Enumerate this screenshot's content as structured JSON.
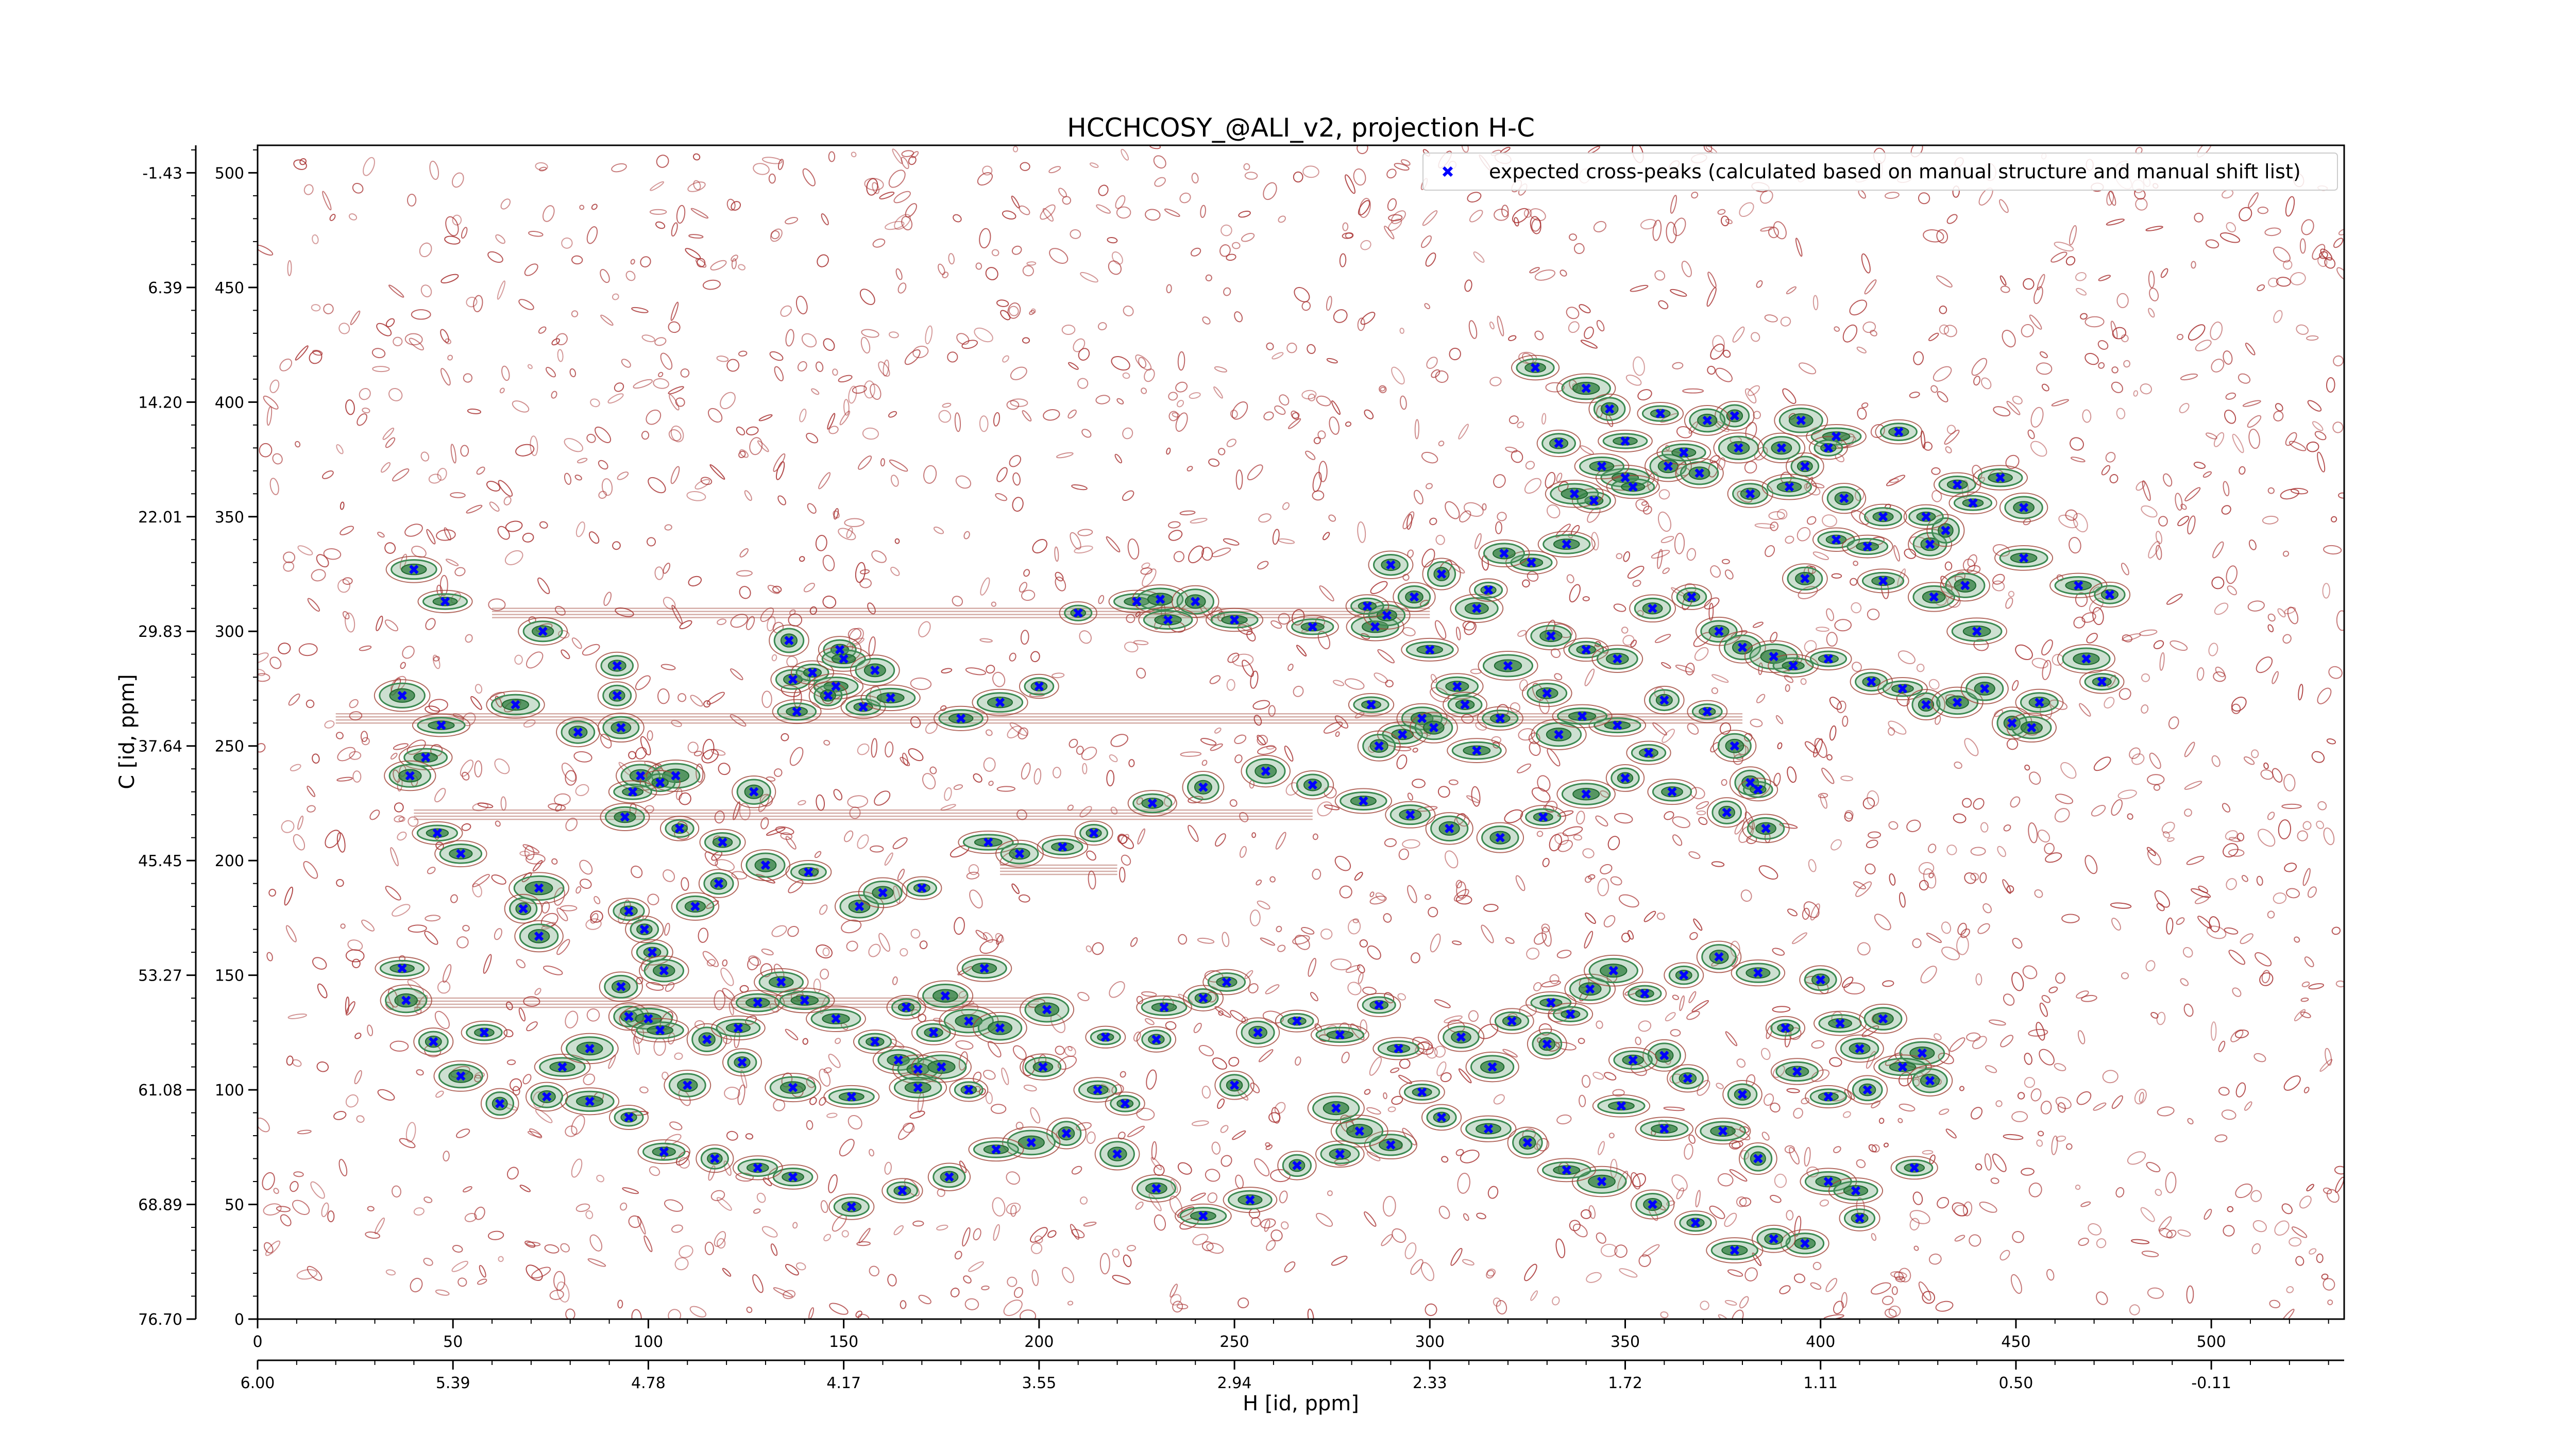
{
  "chart_data": {
    "type": "scatter",
    "title": "HCCHCOSY_@ALI_v2, projection H-C",
    "xlabel": "H [id, ppm]",
    "ylabel": "C [id, ppm]",
    "x_index_range": [
      0,
      534
    ],
    "y_index_range": [
      0,
      512
    ],
    "x_index_ticks": [
      "0",
      "50",
      "100",
      "150",
      "200",
      "250",
      "300",
      "350",
      "400",
      "450",
      "500"
    ],
    "x_ppm_ticks": [
      "6.00",
      "5.39",
      "4.78",
      "4.17",
      "3.55",
      "2.94",
      "2.33",
      "1.72",
      "1.11",
      "0.50",
      "-0.11"
    ],
    "y_index_ticks": [
      "0",
      "50",
      "100",
      "150",
      "200",
      "250",
      "300",
      "350",
      "400",
      "450",
      "500"
    ],
    "y_ppm_ticks": [
      "76.70",
      "68.89",
      "61.08",
      "53.27",
      "45.45",
      "37.64",
      "29.83",
      "22.01",
      "14.20",
      "6.39",
      "-1.43"
    ],
    "grid": false,
    "legend_position": "upper right",
    "series": [
      {
        "name": "expected cross-peaks (calculated based on manual structure and manual shift list)",
        "color": "#0000ff",
        "marker": "x",
        "points": [
          [
            40,
            327
          ],
          [
            48,
            313
          ],
          [
            37,
            272
          ],
          [
            47,
            259
          ],
          [
            66,
            268
          ],
          [
            73,
            300
          ],
          [
            82,
            256
          ],
          [
            92,
            285
          ],
          [
            92,
            272
          ],
          [
            93,
            258
          ],
          [
            98,
            237
          ],
          [
            107,
            237
          ],
          [
            103,
            234
          ],
          [
            96,
            230
          ],
          [
            94,
            219
          ],
          [
            108,
            214
          ],
          [
            119,
            208
          ],
          [
            127,
            230
          ],
          [
            136,
            296
          ],
          [
            137,
            279
          ],
          [
            142,
            282
          ],
          [
            149,
            292
          ],
          [
            150,
            288
          ],
          [
            148,
            276
          ],
          [
            158,
            283
          ],
          [
            146,
            272
          ],
          [
            138,
            265
          ],
          [
            155,
            267
          ],
          [
            162,
            271
          ],
          [
            180,
            262
          ],
          [
            190,
            269
          ],
          [
            200,
            276
          ],
          [
            210,
            308
          ],
          [
            225,
            313
          ],
          [
            231,
            314
          ],
          [
            240,
            313
          ],
          [
            233,
            305
          ],
          [
            250,
            305
          ],
          [
            270,
            302
          ],
          [
            286,
            302
          ],
          [
            289,
            307
          ],
          [
            296,
            315
          ],
          [
            312,
            310
          ],
          [
            315,
            318
          ],
          [
            303,
            325
          ],
          [
            290,
            329
          ],
          [
            284,
            311
          ],
          [
            300,
            292
          ],
          [
            307,
            276
          ],
          [
            320,
            285
          ],
          [
            331,
            298
          ],
          [
            340,
            292
          ],
          [
            348,
            288
          ],
          [
            357,
            310
          ],
          [
            367,
            315
          ],
          [
            374,
            300
          ],
          [
            380,
            293
          ],
          [
            388,
            289
          ],
          [
            360,
            270
          ],
          [
            371,
            265
          ],
          [
            348,
            259
          ],
          [
            333,
            255
          ],
          [
            330,
            273
          ],
          [
            318,
            262
          ],
          [
            309,
            268
          ],
          [
            298,
            262
          ],
          [
            285,
            268
          ],
          [
            293,
            255
          ],
          [
            287,
            250
          ],
          [
            301,
            258
          ],
          [
            312,
            248
          ],
          [
            339,
            263
          ],
          [
            356,
            247
          ],
          [
            378,
            250
          ],
          [
            382,
            234
          ],
          [
            384,
            231
          ],
          [
            393,
            285
          ],
          [
            402,
            288
          ],
          [
            413,
            278
          ],
          [
            421,
            275
          ],
          [
            427,
            268
          ],
          [
            435,
            269
          ],
          [
            442,
            275
          ],
          [
            449,
            260
          ],
          [
            454,
            258
          ],
          [
            456,
            269
          ],
          [
            468,
            288
          ],
          [
            472,
            278
          ],
          [
            440,
            300
          ],
          [
            429,
            315
          ],
          [
            437,
            320
          ],
          [
            452,
            332
          ],
          [
            466,
            320
          ],
          [
            474,
            316
          ],
          [
            416,
            322
          ],
          [
            428,
            338
          ],
          [
            432,
            344
          ],
          [
            427,
            350
          ],
          [
            439,
            356
          ],
          [
            435,
            364
          ],
          [
            446,
            367
          ],
          [
            452,
            354
          ],
          [
            420,
            387
          ],
          [
            404,
            385
          ],
          [
            404,
            340
          ],
          [
            412,
            337
          ],
          [
            406,
            358
          ],
          [
            396,
            372
          ],
          [
            402,
            380
          ],
          [
            395,
            392
          ],
          [
            350,
            367
          ],
          [
            361,
            372
          ],
          [
            369,
            369
          ],
          [
            378,
            394
          ],
          [
            371,
            392
          ],
          [
            359,
            395
          ],
          [
            352,
            363
          ],
          [
            342,
            357
          ],
          [
            335,
            338
          ],
          [
            326,
            330
          ],
          [
            319,
            334
          ],
          [
            337,
            360
          ],
          [
            344,
            372
          ],
          [
            333,
            382
          ],
          [
            340,
            406
          ],
          [
            327,
            415
          ],
          [
            346,
            397
          ],
          [
            350,
            383
          ],
          [
            365,
            378
          ],
          [
            379,
            380
          ],
          [
            390,
            380
          ],
          [
            382,
            360
          ],
          [
            392,
            363
          ],
          [
            396,
            323
          ],
          [
            416,
            350
          ],
          [
            43,
            245
          ],
          [
            39,
            237
          ],
          [
            46,
            212
          ],
          [
            52,
            203
          ],
          [
            72,
            188
          ],
          [
            68,
            179
          ],
          [
            72,
            167
          ],
          [
            95,
            178
          ],
          [
            99,
            170
          ],
          [
            101,
            160
          ],
          [
            104,
            152
          ],
          [
            93,
            145
          ],
          [
            95,
            132
          ],
          [
            100,
            131
          ],
          [
            103,
            126
          ],
          [
            115,
            122
          ],
          [
            123,
            127
          ],
          [
            128,
            138
          ],
          [
            134,
            147
          ],
          [
            140,
            139
          ],
          [
            148,
            131
          ],
          [
            158,
            121
          ],
          [
            164,
            113
          ],
          [
            169,
            109
          ],
          [
            175,
            110
          ],
          [
            173,
            125
          ],
          [
            166,
            136
          ],
          [
            176,
            141
          ],
          [
            182,
            130
          ],
          [
            190,
            127
          ],
          [
            186,
            153
          ],
          [
            202,
            135
          ],
          [
            217,
            123
          ],
          [
            230,
            122
          ],
          [
            232,
            136
          ],
          [
            242,
            140
          ],
          [
            248,
            147
          ],
          [
            256,
            125
          ],
          [
            266,
            130
          ],
          [
            277,
            124
          ],
          [
            287,
            137
          ],
          [
            292,
            118
          ],
          [
            308,
            123
          ],
          [
            321,
            130
          ],
          [
            331,
            138
          ],
          [
            336,
            133
          ],
          [
            341,
            144
          ],
          [
            347,
            152
          ],
          [
            355,
            142
          ],
          [
            365,
            150
          ],
          [
            374,
            158
          ],
          [
            384,
            151
          ],
          [
            391,
            127
          ],
          [
            400,
            148
          ],
          [
            405,
            129
          ],
          [
            410,
            118
          ],
          [
            416,
            131
          ],
          [
            426,
            116
          ],
          [
            421,
            110
          ],
          [
            428,
            104
          ],
          [
            412,
            100
          ],
          [
            402,
            97
          ],
          [
            394,
            108
          ],
          [
            360,
            115
          ],
          [
            352,
            113
          ],
          [
            366,
            105
          ],
          [
            380,
            98
          ],
          [
            375,
            82
          ],
          [
            384,
            70
          ],
          [
            402,
            60
          ],
          [
            409,
            56
          ],
          [
            424,
            66
          ],
          [
            410,
            44
          ],
          [
            396,
            33
          ],
          [
            388,
            35
          ],
          [
            378,
            30
          ],
          [
            368,
            42
          ],
          [
            357,
            50
          ],
          [
            344,
            60
          ],
          [
            335,
            65
          ],
          [
            325,
            77
          ],
          [
            315,
            83
          ],
          [
            303,
            88
          ],
          [
            290,
            76
          ],
          [
            282,
            82
          ],
          [
            277,
            72
          ],
          [
            266,
            67
          ],
          [
            254,
            52
          ],
          [
            242,
            45
          ],
          [
            230,
            57
          ],
          [
            220,
            72
          ],
          [
            207,
            81
          ],
          [
            198,
            77
          ],
          [
            189,
            74
          ],
          [
            177,
            62
          ],
          [
            165,
            56
          ],
          [
            152,
            49
          ],
          [
            137,
            62
          ],
          [
            128,
            66
          ],
          [
            117,
            70
          ],
          [
            104,
            73
          ],
          [
            95,
            88
          ],
          [
            85,
            95
          ],
          [
            74,
            97
          ],
          [
            62,
            94
          ],
          [
            52,
            106
          ],
          [
            45,
            121
          ],
          [
            38,
            139
          ],
          [
            37,
            153
          ],
          [
            58,
            125
          ],
          [
            78,
            110
          ],
          [
            85,
            118
          ],
          [
            110,
            102
          ],
          [
            124,
            112
          ],
          [
            137,
            101
          ],
          [
            152,
            97
          ],
          [
            169,
            101
          ],
          [
            182,
            100
          ],
          [
            201,
            110
          ],
          [
            215,
            100
          ],
          [
            222,
            94
          ],
          [
            250,
            102
          ],
          [
            276,
            92
          ],
          [
            298,
            99
          ],
          [
            316,
            110
          ],
          [
            330,
            120
          ],
          [
            349,
            93
          ],
          [
            360,
            83
          ],
          [
            112,
            180
          ],
          [
            118,
            190
          ],
          [
            130,
            198
          ],
          [
            141,
            195
          ],
          [
            154,
            180
          ],
          [
            160,
            186
          ],
          [
            170,
            188
          ],
          [
            187,
            208
          ],
          [
            195,
            203
          ],
          [
            206,
            206
          ],
          [
            214,
            212
          ],
          [
            229,
            225
          ],
          [
            242,
            232
          ],
          [
            258,
            239
          ],
          [
            270,
            233
          ],
          [
            283,
            226
          ],
          [
            295,
            220
          ],
          [
            305,
            214
          ],
          [
            318,
            210
          ],
          [
            329,
            219
          ],
          [
            340,
            229
          ],
          [
            350,
            236
          ],
          [
            362,
            230
          ],
          [
            376,
            221
          ],
          [
            386,
            214
          ]
        ]
      }
    ]
  }
}
